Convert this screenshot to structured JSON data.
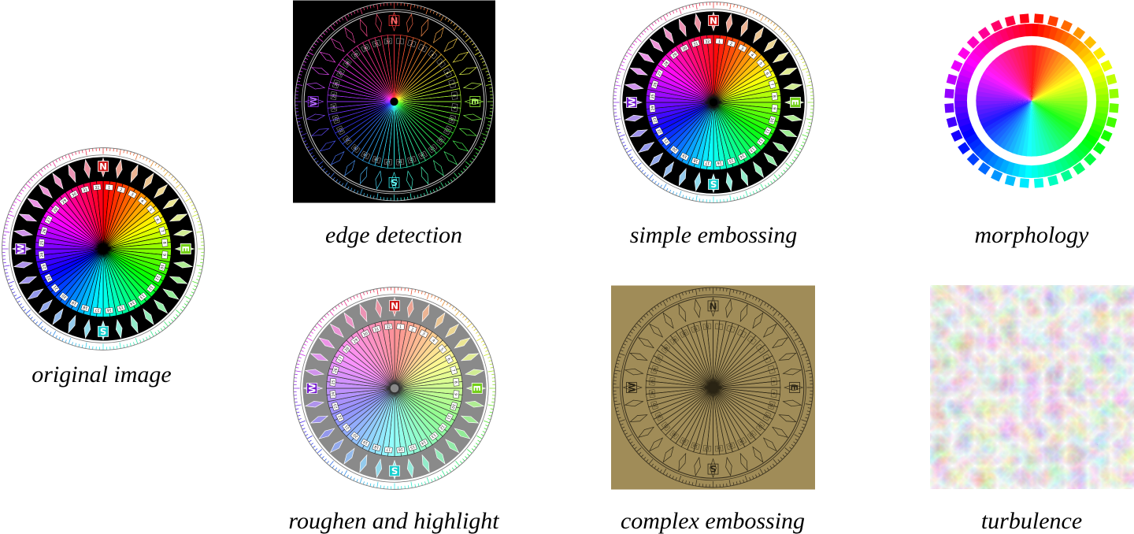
{
  "captions": {
    "original": "original image",
    "edge": "edge detection",
    "simple_emboss": "simple embossing",
    "morphology": "morphology",
    "roughen": "roughen and highlight",
    "complex_emboss": "complex embossing",
    "turbulence": "turbulence"
  },
  "compass": {
    "cardinals": [
      "N",
      "E",
      "S",
      "W"
    ],
    "ring_numbers": [
      "1",
      "2",
      "3",
      "4",
      "5",
      "6",
      "7",
      "8",
      "9",
      "10",
      "11",
      "12",
      "13",
      "14",
      "15",
      "16",
      "17",
      "18",
      "19",
      "20",
      "21",
      "22",
      "23",
      "24",
      "25",
      "26",
      "27",
      "28",
      "29",
      "30",
      "31",
      "32"
    ],
    "ray_count": 64
  },
  "colors": {
    "page_background": "#ffffff",
    "edge_background": "#000000",
    "emboss_background": "#a08c58",
    "roughen_ring": "#8a8a8a"
  }
}
